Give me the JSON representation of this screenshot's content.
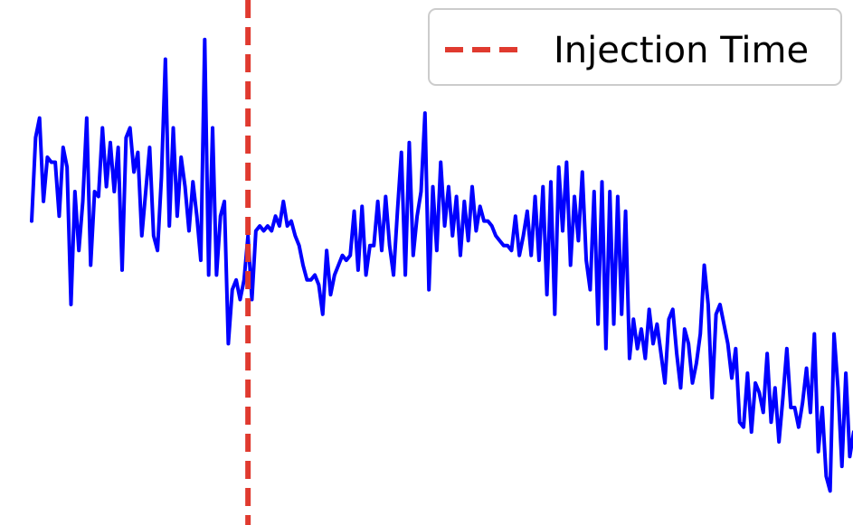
{
  "chart_data": {
    "type": "line",
    "title": "",
    "xlabel": "",
    "ylabel": "",
    "axes_visible": false,
    "grid": false,
    "legend_position": "top-right",
    "xlim": [
      0,
      201
    ],
    "ylim": [
      0,
      1
    ],
    "series": [
      {
        "color": "#0000ff",
        "values": [
          0.41,
          0.24,
          0.2,
          0.37,
          0.28,
          0.29,
          0.29,
          0.4,
          0.26,
          0.3,
          0.58,
          0.35,
          0.47,
          0.37,
          0.2,
          0.5,
          0.35,
          0.36,
          0.22,
          0.34,
          0.25,
          0.35,
          0.26,
          0.51,
          0.24,
          0.22,
          0.31,
          0.27,
          0.44,
          0.35,
          0.26,
          0.44,
          0.47,
          0.32,
          0.08,
          0.42,
          0.22,
          0.4,
          0.28,
          0.34,
          0.43,
          0.33,
          0.4,
          0.49,
          0.04,
          0.52,
          0.22,
          0.52,
          0.4,
          0.37,
          0.66,
          0.55,
          0.53,
          0.57,
          0.53,
          0.44,
          0.57,
          0.43,
          0.42,
          0.43,
          0.42,
          0.43,
          0.4,
          0.42,
          0.37,
          0.42,
          0.41,
          0.44,
          0.46,
          0.5,
          0.53,
          0.53,
          0.52,
          0.54,
          0.6,
          0.47,
          0.56,
          0.52,
          0.5,
          0.48,
          0.49,
          0.48,
          0.39,
          0.51,
          0.38,
          0.52,
          0.46,
          0.46,
          0.37,
          0.47,
          0.36,
          0.46,
          0.52,
          0.39,
          0.27,
          0.52,
          0.25,
          0.48,
          0.4,
          0.35,
          0.19,
          0.55,
          0.34,
          0.47,
          0.29,
          0.42,
          0.34,
          0.44,
          0.36,
          0.48,
          0.37,
          0.45,
          0.34,
          0.43,
          0.38,
          0.41,
          0.41,
          0.42,
          0.44,
          0.45,
          0.46,
          0.46,
          0.47,
          0.4,
          0.48,
          0.44,
          0.39,
          0.48,
          0.36,
          0.49,
          0.34,
          0.56,
          0.33,
          0.6,
          0.3,
          0.43,
          0.29,
          0.5,
          0.36,
          0.45,
          0.31,
          0.49,
          0.55,
          0.35,
          0.62,
          0.33,
          0.67,
          0.35,
          0.62,
          0.36,
          0.6,
          0.39,
          0.69,
          0.61,
          0.67,
          0.63,
          0.69,
          0.59,
          0.66,
          0.62,
          0.68,
          0.74,
          0.61,
          0.59,
          0.68,
          0.75,
          0.63,
          0.66,
          0.74,
          0.7,
          0.64,
          0.5,
          0.58,
          0.77,
          0.6,
          0.58,
          0.62,
          0.66,
          0.73,
          0.67,
          0.82,
          0.83,
          0.72,
          0.84,
          0.74,
          0.76,
          0.8,
          0.68,
          0.82,
          0.75,
          0.86,
          0.77,
          0.67,
          0.79,
          0.79,
          0.83,
          0.78,
          0.71,
          0.8,
          0.64,
          0.88,
          0.79,
          0.93,
          0.96,
          0.64,
          0.75,
          0.91,
          0.72,
          0.89,
          0.84
        ]
      }
    ],
    "vertical_markers": [
      {
        "label": "Injection Time",
        "x": 55,
        "color": "#e03a2f",
        "style": "dashed"
      }
    ]
  }
}
